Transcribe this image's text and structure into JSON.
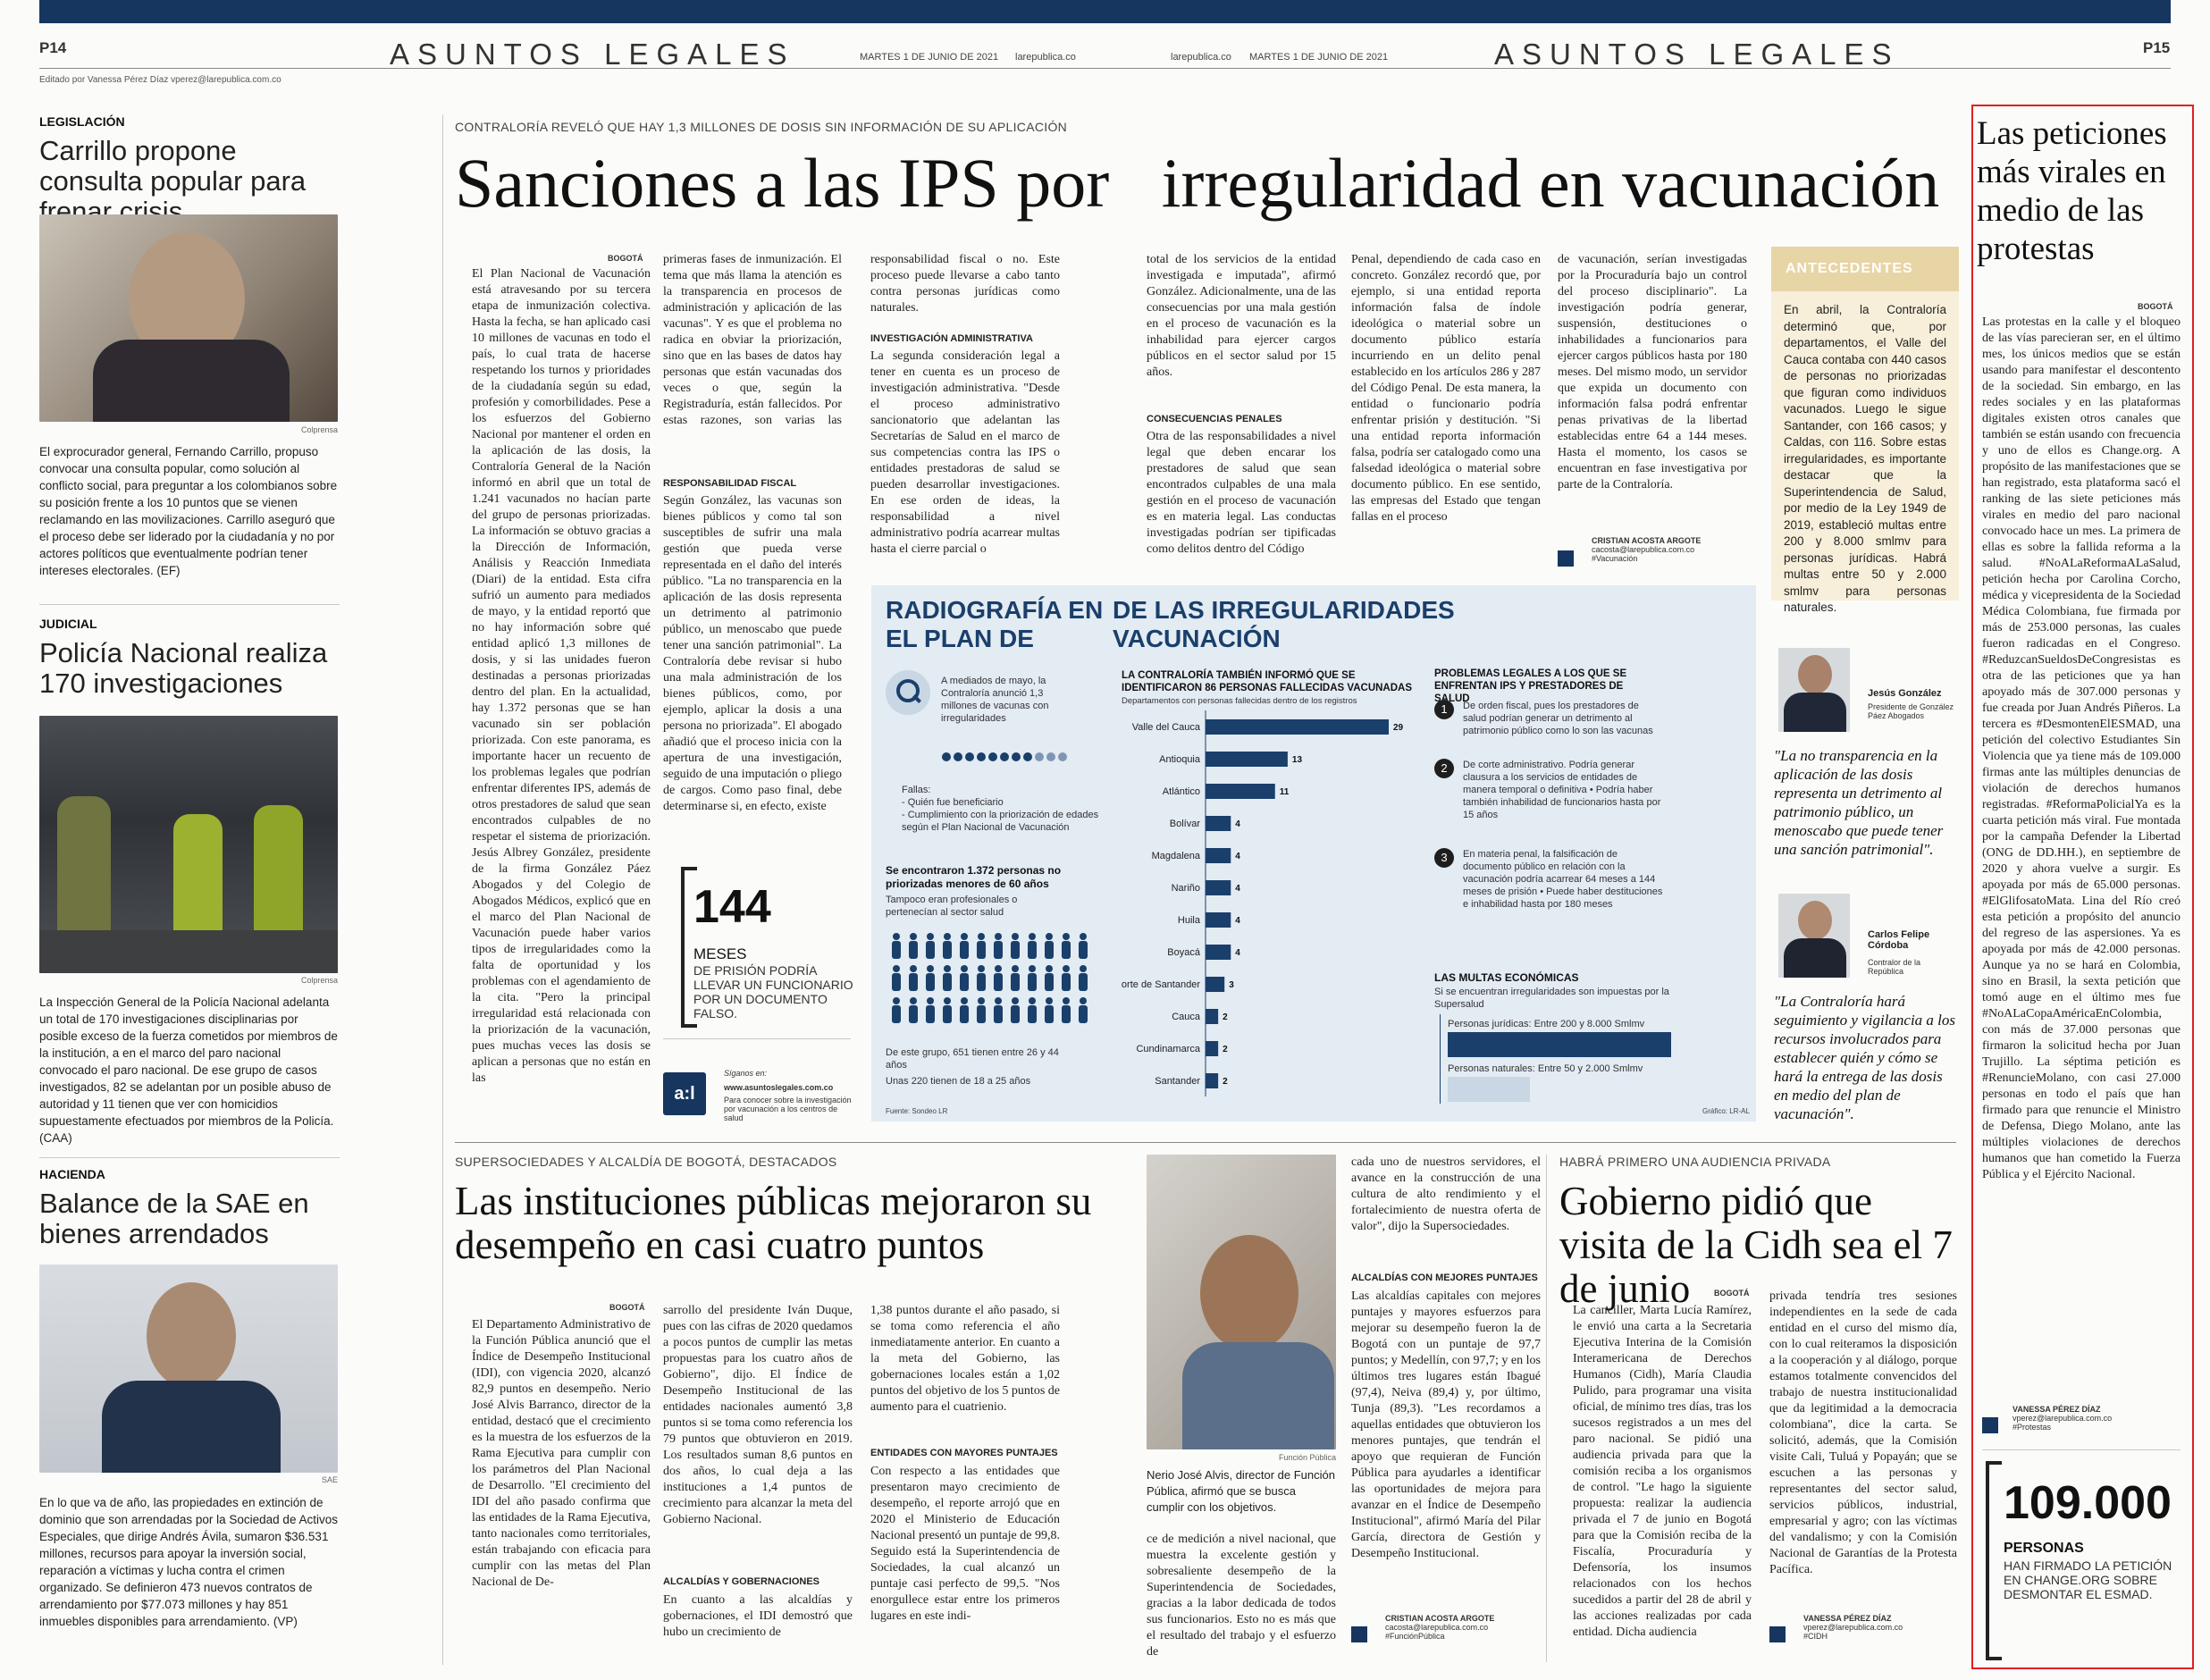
{
  "header": {
    "left_page": "P14",
    "right_page": "P15",
    "section": "ASUNTOS LEGALES",
    "date": "MARTES 1 DE JUNIO DE 2021",
    "site": "larepublica.co",
    "editor": "Editado por Vanessa Pérez Díaz vperez@larepublica.com.co"
  },
  "left_column": [
    {
      "kicker": "LEGISLACIÓN",
      "headline": "Carrillo propone consulta popular para frenar crisis",
      "credit": "Colprensa",
      "caption": "El exprocurador general, Fernando Carrillo, propuso convocar una consulta popular, como solución al conflicto social, para preguntar a los colombianos sobre su posición frente a los 10 puntos que se vienen reclamando en las movilizaciones. Carrillo aseguró que el proceso debe ser liderado por la ciudadanía y no por actores políticos que eventualmente podrían tener intereses electorales. (EF)"
    },
    {
      "kicker": "JUDICIAL",
      "headline": "Policía Nacional realiza 170 investigaciones",
      "credit": "Colprensa",
      "caption": "La Inspección General de la Policía Nacional adelanta un total de 170 investigaciones disciplinarias por posible exceso de la fuerza cometidos por miembros de la institución, a en el marco del paro nacional convocado el paro nacional. De ese grupo de casos investigados, 82 se adelantan por un posible abuso de autoridad y 11 tienen que ver con homicidios supuestamente efectuados por miembros de la Policía. (CAA)"
    },
    {
      "kicker": "HACIENDA",
      "headline": "Balance de la SAE en bienes arrendados",
      "credit": "SAE",
      "caption": "En lo que va de año, las propiedades en extinción de dominio que son arrendadas por la Sociedad de Activos Especiales, que dirige Andrés Ávila, sumaron $36.531 millones, recursos para apoyar la inversión social, reparación a víctimas y lucha contra el crimen organizado. Se definieron 473 nuevos contratos de arrendamiento por $77.073 millones y hay 851 inmuebles disponibles para arrendamiento. (VP)"
    }
  ],
  "main_story": {
    "overline": "CONTRALORÍA REVELÓ QUE HAY 1,3 MILLONES DE DOSIS SIN INFORMACIÓN DE SU APLICACIÓN",
    "headline": "Sanciones a las IPS por   irregularidad en vacunación",
    "dateline": "BOGOTÁ",
    "col1": "El Plan Nacional de Vacunación está atravesando por su tercera etapa de inmunización colectiva. Hasta la fecha, se han aplicado casi 10 millones de vacunas en todo el país, lo cual trata de hacerse respetando los turnos y prioridades de la ciudadanía según su edad, profesión y comorbilidades. Pese a los esfuerzos del Gobierno Nacional por mantener el orden en la aplicación de las dosis, la Contraloría General de la Nación informó en abril que un total de 1.241 vacunados no hacían parte del grupo de personas priorizadas. La información se obtuvo gracias a la Dirección de Información, Análisis y Reacción Inmediata (Diari) de la entidad. Esta cifra sufrió un aumento para mediados de mayo, y la entidad reportó que no hay información sobre qué entidad aplicó 1,3 millones de dosis, y si las unidades fueron destinadas a personas priorizadas dentro del plan. En la actualidad, hay 1.372 personas que se han vacunado sin ser población priorizada. Con este panorama, es importante hacer un recuento de los problemas legales que podrían enfrentar diferentes IPS, además de otros prestadores de salud que sean encontrados culpables de no respetar el sistema de priorización. Jesús Albrey González, presidente de la firma González Páez Abogados y del Colegio de Abogados Médicos, explicó que en el marco del Plan Nacional de Vacunación puede haber varios tipos de irregularidades como la falta de oportunidad y los problemas con el agendamiento de la cita. \"Pero la principal irregularidad está relacionada con la priorización de la vacunación, pues muchas veces las dosis se aplican a personas que no están en las",
    "col2": "primeras fases de inmunización. El tema que más llama la atención es la transparencia en procesos de administración y aplicación de las vacunas\". Y es que el problema no radica en obviar la priorización, sino que en las bases de datos hay personas que están vacunadas dos veces o que, según la Registraduría, están fallecidos. Por estas razones, son varias las sanciones que se presentan por este tema.",
    "sub1": "RESPONSABILIDAD FISCAL",
    "col2b": "Según González, las vacunas son bienes públicos y como tal son susceptibles de sufrir una mala gestión que pueda verse representada en el daño del interés público. \"La no transparencia en la aplicación de las dosis representa un detrimento al patrimonio público, un menoscabo que puede tener una sanción patrimonial\". La Contraloría debe revisar si hubo una mala administración de los bienes públicos, como, por ejemplo, aplicar la dosis a una persona no priorizada\". El abogado añadió que el proceso inicia con la apertura de una investigación, seguido de una imputación o pliego de cargos. Como paso final, debe determinarse si, en efecto, existe",
    "col3": "responsabilidad fiscal o no. Este proceso puede llevarse a cabo tanto contra personas jurídicas como naturales.",
    "sub2": "INVESTIGACIÓN ADMINISTRATIVA",
    "col3b": "La segunda consideración legal a tener en cuenta es un proceso de investigación administrativa. \"Desde el proceso administrativo sancionatorio que adelantan las Secretarías de Salud en el marco de sus competencias contra las IPS o entidades prestadoras de salud se pueden desarrollar investigaciones. En ese orden de ideas, la responsabilidad a nivel administrativo podría acarrear multas hasta el cierre parcial o",
    "col4": "total de los servicios de la entidad investigada e imputada\", afirmó González. Adicionalmente, una de las consecuencias por una mala gestión en el proceso de vacunación es la inhabilidad para ejercer cargos públicos en el sector salud por 15 años.",
    "sub3": "CONSECUENCIAS PENALES",
    "col4b": "Otra de las responsabilidades a nivel legal que deben encarar los prestadores de salud que sean encontrados culpables de una mala gestión en el proceso de vacunación es en materia legal. Las conductas investigadas podrían ser tipificadas como delitos dentro del Código",
    "col5": "Penal, dependiendo de cada caso en concreto. González recordó que, por ejemplo, si una entidad reporta información falsa de índole ideológica o material sobre un documento público estaría incurriendo en un delito penal establecido en los artículos 286 y 287 del Código Penal. De esta manera, la entidad o funcionario podría enfrentar prisión y destitución. \"Si una entidad reporta información falsa, podría ser catalogado como una falsedad ideológica o material sobre documento público. En ese sentido, las empresas del Estado que tengan fallas en el proceso",
    "col6": "de vacunación, serían investigadas por la Procuraduría bajo un control del proceso disciplinario\". La investigación podría generar, suspensión, destituciones o inhabilidades a funcionarios para ejercer cargos públicos hasta por 180 meses. Del mismo modo, un servidor que expida un documento con información falsa podrá enfrentar penas privativas de la libertad establecidas entre 64 a 144 meses. Hasta el momento, los casos se encuentran en fase investigativa por parte de la Contraloría.",
    "byline": "CRISTIAN ACOSTA ARGOTE",
    "byline_email": "cacosta@larepublica.com.co",
    "byline_tag": "#Vacunación"
  },
  "antecedentes": {
    "title": "ANTECEDENTES",
    "text": "En abril, la Contraloría determinó que, por departamentos, el Valle del Cauca contaba con 440 casos de personas no priorizadas que figuran como individuos vacunados. Luego le sigue Santander, con 166 casos; y Caldas, con 116. Sobre estas irregularidades, es importante destacar que la Superintendencia de Salud, por medio de la Ley 1949 de 2019, estableció multas entre 200 y 8.000 smlmv para personas jurídicas. Habrá multas entre 50 y 2.000 smlmv para personas naturales."
  },
  "infographic": {
    "title_a": "RADIOGRAFÍA EN EL PLAN DE",
    "title_b": "DE LAS IRREGULARIDADES VACUNACIÓN",
    "intro": "A mediados de mayo, la Contraloría anunció 1,3 millones de vacunas con irregularidades",
    "fallas_label": "Fallas:",
    "fallas": [
      "- Quién fue beneficiario",
      "- Cumplimiento con la priorización de edades según el Plan Nacional de Vacunación"
    ],
    "found": "Se encontraron 1.372 personas no priorizadas menores de 60 años",
    "found_note": "Tampoco eran profesionales o pertenecían al sector salud",
    "group1": "De este grupo, 651 tienen entre 26 y 44 años",
    "group2": "Unas 220 tienen de 18 a 25 años",
    "chart_title": "LA CONTRALORÍA TAMBIÉN INFORMÓ QUE SE IDENTIFICARON 86 PERSONAS FALLECIDAS VACUNADAS",
    "chart_subtitle": "Departamentos con personas fallecidas dentro de los registros",
    "problems_title": "PROBLEMAS LEGALES A LOS QUE SE ENFRENTAN IPS Y PRESTADORES DE SALUD",
    "problems": [
      {
        "n": "1",
        "text": "De orden fiscal, pues los prestadores de salud podrían generar un detrimento al patrimonio público como lo son las vacunas"
      },
      {
        "n": "2",
        "text": "De corte administrativo. Podría generar clausura a los servicios de entidades de manera temporal o definitiva • Podría haber también inhabilidad de funcionarios hasta por 15 años"
      },
      {
        "n": "3",
        "text": "En materia penal, la falsificación de documento público en relación con la vacunación podría acarrear 64 meses a 144 meses de prisión • Puede haber destituciones e inhabilidad hasta por 180 meses"
      }
    ],
    "fines_title": "LAS MULTAS ECONÓMICAS",
    "fines_sub": "Si se encuentran irregularidades son impuestas por la Supersalud",
    "fine1": "Personas jurídicas: Entre 200 y 8.000 Smlmv",
    "fine2": "Personas naturales: Entre 50 y 2.000 Smlmv",
    "source": "Fuente: Sondeo LR",
    "grafico": "Gráfico: LR-AL"
  },
  "chart_data": {
    "type": "bar",
    "title": "LA CONTRALORÍA TAMBIÉN INFORMÓ QUE SE IDENTIFICARON 86 PERSONAS FALLECIDAS VACUNADAS",
    "subtitle": "Departamentos con personas fallecidas dentro de los registros",
    "categories": [
      "Valle del Cauca",
      "Antioquia",
      "Atlántico",
      "Bolívar",
      "Magdalena",
      "Nariño",
      "Huila",
      "Boyacá",
      "Norte de Santander",
      "Cauca",
      "Cundinamarca",
      "Santander"
    ],
    "values": [
      29,
      13,
      11,
      4,
      4,
      4,
      4,
      4,
      3,
      2,
      2,
      2
    ],
    "orientation": "horizontal",
    "xlim": [
      0,
      29
    ]
  },
  "pull_stat": {
    "number": "144",
    "unit": "MESES",
    "desc": "DE PRISIÓN PODRÍA LLEVAR UN FUNCIONARIO POR UN DOCUMENTO FALSO."
  },
  "promo": {
    "logo": "a:l",
    "label": "Síganos en:",
    "url": "www.asuntoslegales.com.co",
    "text": "Para conocer sobre la investigación por vacunación a los centros de salud"
  },
  "quotes": [
    {
      "name": "Jesús González",
      "role": "Presidente de González Páez Abogados",
      "quote": "\"La no transparencia en la aplicación de las dosis representa un detrimento al patrimonio público, un menoscabo que puede tener una sanción patrimonial\"."
    },
    {
      "name": "Carlos Felipe Córdoba",
      "role": "Contralor de la República",
      "quote": "\"La Contraloría hará seguimiento y vigilancia a los recursos involucrados para establecer quién y cómo se hará la entrega de las dosis en medio del plan de vacunación\"."
    }
  ],
  "story2": {
    "overline": "SUPERSOCIEDADES Y ALCALDÍA DE BOGOTÁ, DESTACADOS",
    "headline": "Las instituciones públicas mejoraron su desempeño en casi cuatro puntos",
    "dateline": "BOGOTÁ",
    "col1": "El Departamento Administrativo de la Función Pública anunció que el Índice de Desempeño Institucional (IDI), con vigencia 2020, alcanzó 82,9 puntos en desempeño. Nerio José Alvis Barranco, director de la entidad, destacó que el crecimiento es la muestra de los esfuerzos de la Rama Ejecutiva para cumplir con los parámetros del Plan Nacional de Desarrollo. \"El crecimiento del IDI del año pasado confirma que las entidades de la Rama Ejecutiva, tanto nacionales como territoriales, están trabajando con eficacia para cumplir con las metas del Plan Nacional de De-",
    "col2": "sarrollo del presidente Iván Duque, pues con las cifras de 2020 quedamos a pocos puntos de cumplir las metas propuestas para los cuatro años de Gobierno\", dijo. El Índice de Desempeño Institucional de las entidades nacionales aumentó 3,8 puntos si se toma como referencia los 79 puntos que obtuvieron en 2019. Los resultados suman 8,6 puntos en dos años, lo cual deja a las instituciones a 1,4 puntos de crecimiento para alcanzar la meta del Gobierno Nacional.",
    "sub1": "ALCALDÍAS Y GOBERNACIONES",
    "col2b": "En cuanto a las alcaldías y gobernaciones, el IDI demostró que hubo un crecimiento de",
    "col3": "1,38 puntos durante el año pasado, si se toma como referencia el año inmediatamente anterior. En cuanto a la meta del Gobierno, las gobernaciones locales están a 1,02 puntos del objetivo de los 5 puntos de aumento para el cuatrienio.",
    "sub2": "ENTIDADES CON MAYORES PUNTAJES",
    "col3b": "Con respecto a las entidades que presentaron mayo crecimiento de desempeño, el reporte arrojó que en 2020 el Ministerio de Educación Nacional presentó un puntaje de 99,8. Seguido está la Superintendencia de Sociedades, la cual alcanzó un puntaje casi perfecto de 99,5. \"Nos enorgullece estar entre los primeros lugares en este indi-",
    "photo_credit": "Función Pública",
    "photo_caption": "Nerio José Alvis, director de Función Pública, afirmó que se busca cumplir con los objetivos.",
    "col4": "ce de medición a nivel nacional, que muestra la excelente gestión y sobresaliente desempeño de la Superintendencia de Sociedades, gracias a la labor dedicada de todos sus funcionarios. Esto no es más que el resultado del trabajo y el esfuerzo de",
    "col5": "cada uno de nuestros servidores, el avance en la construcción de una cultura de alto rendimiento y el fortalecimiento de nuestra oferta de valor\", dijo la Supersociedades.",
    "sub3": "ALCALDÍAS CON MEJORES PUNTAJES",
    "col5b": "Las alcaldías capitales con mejores puntajes y mayores esfuerzos para mejorar su desempeño fueron la de Bogotá con un puntaje de 97,7 puntos; y Medellín, con 97,7; y en los últimos tres lugares están Ibagué (97,4), Neiva (89,4) y, por último, Tunja (89,3). \"Les recordamos a aquellas entidades que obtuvieron los menores puntajes, que tendrán el apoyo que requieran de Función Pública para ayudarles a identificar las oportunidades de mejora para avanzar en el Índice de Desempeño Institucional\", afirmó María del Pilar García, directora de Gestión y Desempeño Institucional.",
    "byline": "CRISTIAN ACOSTA ARGOTE",
    "byline_email": "cacosta@larepublica.com.co",
    "byline_tag": "#FunciónPública"
  },
  "story3": {
    "overline": "HABRÁ PRIMERO UNA AUDIENCIA PRIVADA",
    "headline": "Gobierno pidió que visita de la Cidh sea el 7 de junio",
    "dateline": "BOGOTÁ",
    "col1": "La canciller, Marta Lucía Ramírez, le envió una carta a la Secretaria Ejecutiva Interina de la Comisión Interamericana de Derechos Humanos (Cidh), María Claudia Pulido, para programar una visita oficial, de mínimo tres días, tras los sucesos registrados a un mes del paro nacional. Se pidió una audiencia privada para que la comisión reciba a los organismos de control. \"Le hago la siguiente propuesta: realizar la audiencia privada el 7 de junio en Bogotá para que la Comisión reciba de la Fiscalía, Procuraduría y Defensoría, los insumos relacionados con los hechos sucedidos a partir del 28 de abril y las acciones realizadas por cada entidad. Dicha audiencia",
    "col2": "privada tendría tres sesiones independientes en la sede de cada entidad en el curso del mismo día, con lo cual reiteramos la disposición a la cooperación y al diálogo, porque estamos totalmente convencidos del trabajo de nuestra institucionalidad que da legitimidad a la democracia colombiana\", dice la carta. Se solicitó, además, que la Comisión visite Cali, Tuluá y Popayán; que se escuchen a las personas y representantes del sector salud, servicios públicos, industrial, empresarial y agro; con las víctimas del vandalismo; y con la Comisión Nacional de Garantías de la Protesta Pacífica.",
    "byline": "VANESSA PÉREZ DÍAZ",
    "byline_email": "vperez@larepublica.com.co",
    "byline_tag": "#CIDH"
  },
  "sidebar": {
    "headline": "Las peticiones más virales en medio de las protestas",
    "dateline": "BOGOTÁ",
    "text": "Las protestas en la calle y el bloqueo de las vías parecieran ser, en el último mes, los únicos medios que se están usando para manifestar el descontento de la sociedad. Sin embargo, en las redes sociales y en las plataformas digitales existen otros canales que también se están usando con frecuencia y uno de ellos es Change.org. A propósito de las manifestaciones que se han registrado, esta plataforma sacó el ranking de las siete peticiones más virales en medio del paro nacional convocado hace un mes. La primera de ellas es sobre la fallida reforma a la salud. #NoALaReformaALaSalud, petición hecha por Carolina Corcho, médica y vicepresidenta de la Sociedad Médica Colombiana, fue firmada por más de 253.000 personas, las cuales fueron radicadas en el Congreso. #ReduzcanSueldosDeCongresistas es otra de las peticiones que ya han apoyado más de 307.000 personas y fue creada por Juan Andrés Piñeros. La tercera es #DesmontenElESMAD, una petición del colectivo Estudiantes Sin Violencia que ya tiene más de 109.000 firmas ante las múltiples denuncias de violación de derechos humanos registradas. #ReformaPolicialYa es la cuarta petición más viral. Fue montada por la campaña Defender la Libertad (ONG de DD.HH.), en septiembre de 2020 y ahora vuelve a surgir. Es apoyada por más de 65.000 personas. #ElGlifosatoMata. Lina del Río creó esta petición a propósito del anuncio del regreso de las aspersiones. Ya es apoyada por más de 42.000 personas. Aunque ya no se hará en Colombia, sino en Brasil, la sexta petición que tomó auge en el último mes fue #NoALaCopaAméricaEnColombia, con más de 37.000 personas que firmaron la solicitud hecha por Juan Trujillo. La séptima petición es #RenuncieMolano, con casi 27.000 personas en todo el país que han firmado para que renuncie el Ministro de Defensa, Diego Molano, ante las múltiples violaciones de derechos humanos que han cometido la Fuerza Pública y el Ejército Nacional.",
    "byline": "VANESSA PÉREZ DÍAZ",
    "byline_email": "vperez@larepublica.com.co",
    "byline_tag": "#Protestas",
    "stat_number": "109.000",
    "stat_unit": "PERSONAS",
    "stat_desc": "HAN FIRMADO LA PETICIÓN EN CHANGE.ORG SOBRE DESMONTAR EL ESMAD."
  },
  "colors": {
    "navy": "#16365f",
    "infobox": "#e3ebf3",
    "antecedentes": "#e8d5a6",
    "highlight": "#e02020"
  }
}
